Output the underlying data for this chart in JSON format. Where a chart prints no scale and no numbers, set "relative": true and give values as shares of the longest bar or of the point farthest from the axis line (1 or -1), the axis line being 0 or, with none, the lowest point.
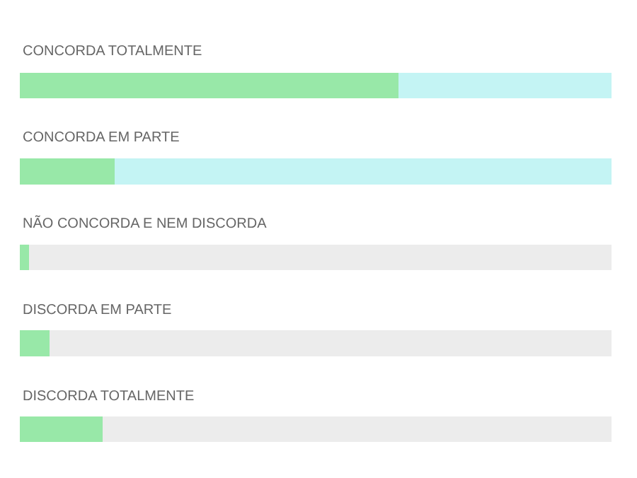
{
  "chart_data": {
    "type": "bar",
    "orientation": "horizontal",
    "relative": true,
    "stacked": true,
    "categories": [
      "CONCORDA TOTALMENTE",
      "CONCORDA EM PARTE",
      "NÃO CONCORDA E NEM DISCORDA",
      "DISCORDA EM PARTE",
      "DISCORDA TOTALMENTE"
    ],
    "series": [
      {
        "color": "#98e8a8",
        "values": [
          0.64,
          0.16,
          0.015,
          0.05,
          0.14
        ]
      },
      {
        "colors": [
          "#c4f4f4",
          "#c4f4f4",
          "#ececec",
          "#ececec",
          "#ececec"
        ],
        "values": [
          0.36,
          0.84,
          0.985,
          0.95,
          0.86
        ]
      }
    ],
    "grid": false
  }
}
